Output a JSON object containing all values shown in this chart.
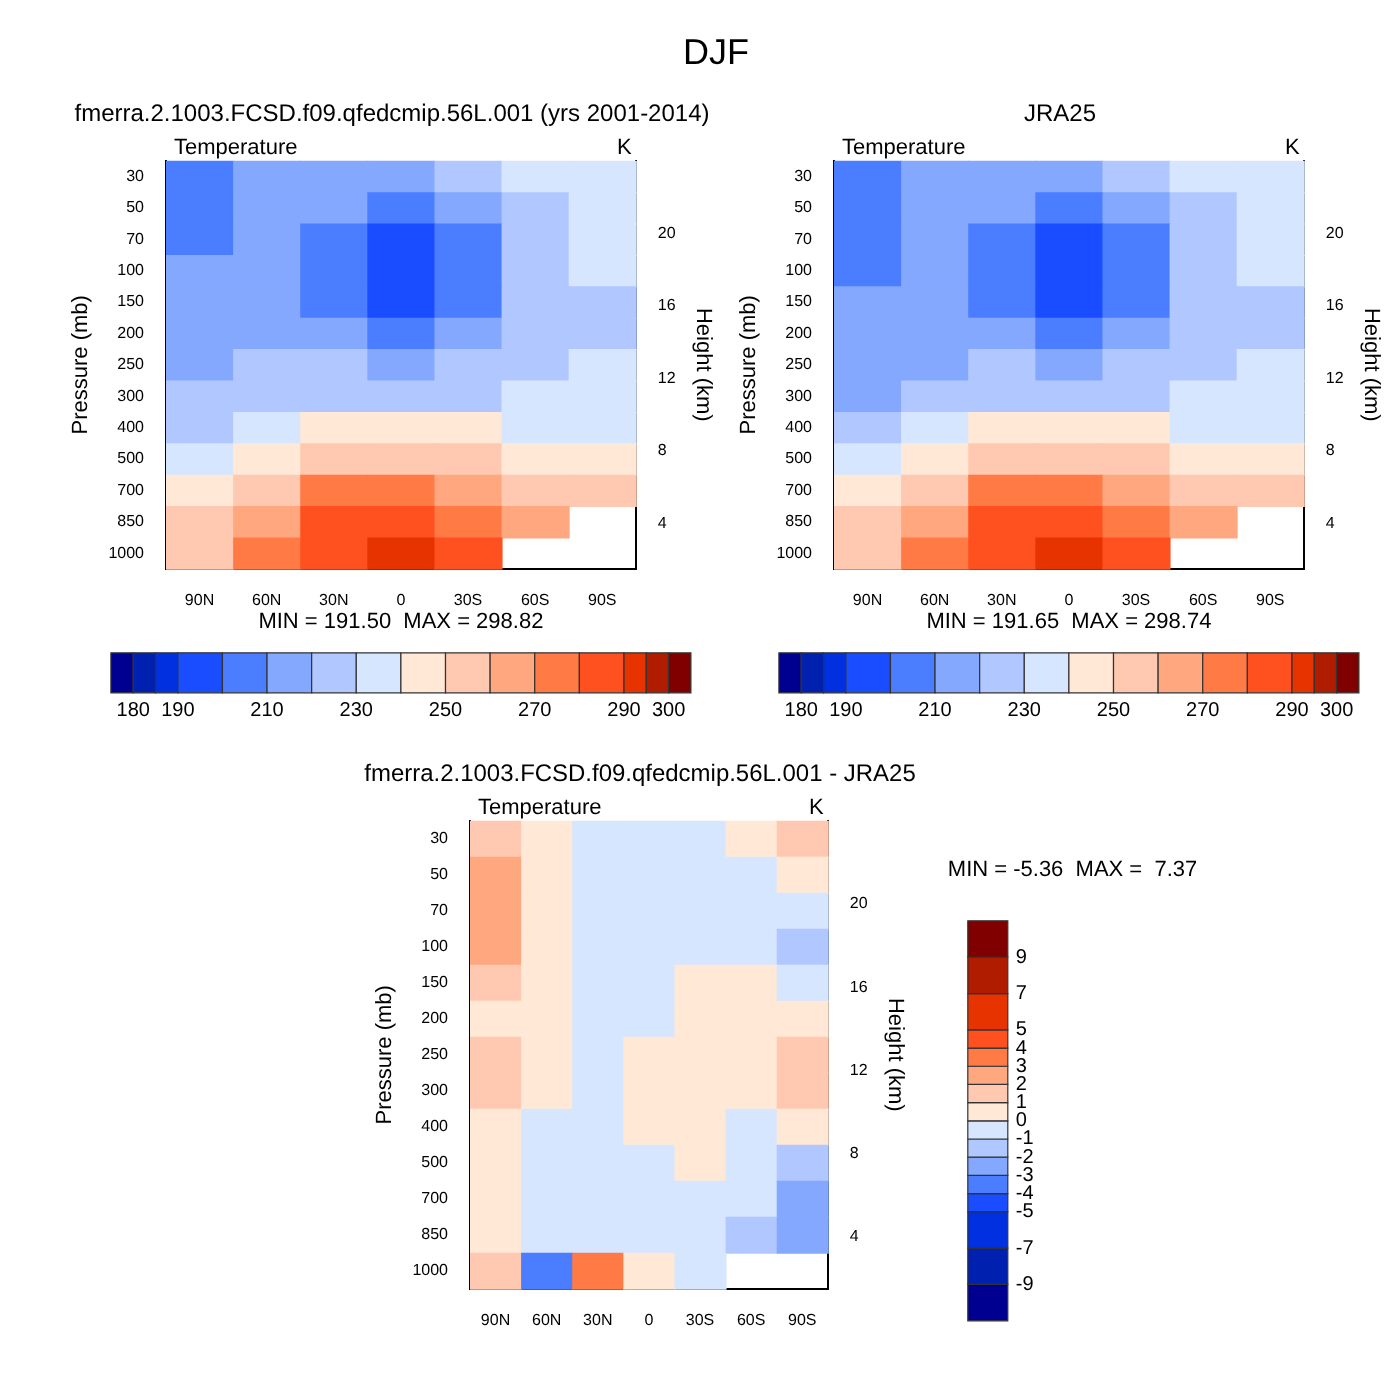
{
  "chart_data": [
    {
      "type": "other",
      "title": "DJF"
    },
    {
      "type": "heatmap",
      "title": "fmerra.2.1003.FCSD.f09.qfedcmip.56L.001 (yrs 2001-2014)",
      "ylabel": "Pressure (mb)",
      "y2label": "Height (km)",
      "annotations": [
        "Temperature",
        "K",
        "MIN = 191.50  MAX = 298.82"
      ],
      "categories": [
        "90N",
        "60N",
        "30N",
        "0",
        "30S",
        "60S",
        "90S"
      ],
      "y_categories": [
        "30",
        "50",
        "70",
        "100",
        "150",
        "200",
        "250",
        "300",
        "400",
        "500",
        "700",
        "850",
        "1000"
      ],
      "cells": [
        [
          205,
          212,
          215,
          213,
          222,
          232,
          235
        ],
        [
          205,
          213,
          212,
          205,
          218,
          228,
          232
        ],
        [
          208,
          213,
          205,
          197,
          208,
          225,
          232
        ],
        [
          210,
          214,
          200,
          195,
          200,
          222,
          232
        ],
        [
          213,
          215,
          205,
          198,
          205,
          222,
          228
        ],
        [
          215,
          217,
          213,
          205,
          213,
          225,
          228
        ],
        [
          217,
          220,
          222,
          215,
          222,
          228,
          232
        ],
        [
          220,
          223,
          228,
          228,
          228,
          232,
          235
        ],
        [
          225,
          232,
          245,
          247,
          243,
          237,
          238
        ],
        [
          233,
          243,
          255,
          258,
          253,
          245,
          242
        ],
        [
          248,
          258,
          270,
          275,
          268,
          258,
          250
        ],
        [
          253,
          265,
          280,
          285,
          278,
          268,
          null
        ],
        [
          255,
          270,
          288,
          292,
          285,
          null,
          null
        ]
      ],
      "cticks": [
        180,
        {
          "value": 185,
          "label": null
        },
        190,
        {
          "value": 200,
          "label": null
        },
        210,
        {
          "value": 220,
          "label": null
        },
        230,
        {
          "value": 240,
          "label": null
        },
        250,
        {
          "value": 260,
          "label": null
        },
        270,
        {
          "value": 280,
          "label": null
        },
        290,
        {
          "value": 295,
          "label": null
        },
        300
      ],
      "colors": [
        "#000090",
        "#0020b0",
        "#0030e0",
        "#1a4dff",
        "#4a7dff",
        "#85a8ff",
        "#b0c8ff",
        "#d6e6ff",
        "#ffe8d6",
        "#ffc8b0",
        "#ffa880",
        "#ff7a45",
        "#ff5020",
        "#e63300",
        "#b01c00",
        "#800000"
      ],
      "clim": [
        175,
        305
      ],
      "y2lim": [
        1.5,
        24
      ],
      "y2ticks": [
        4,
        8,
        12,
        16,
        20
      ]
    },
    {
      "type": "heatmap",
      "title": "JRA25",
      "ylabel": "Pressure (mb)",
      "y2label": "Height (km)",
      "annotations": [
        "Temperature",
        "K",
        "MIN = 191.65  MAX = 298.74"
      ],
      "categories": [
        "90N",
        "60N",
        "30N",
        "0",
        "30S",
        "60S",
        "90S"
      ],
      "y_categories": [
        "30",
        "50",
        "70",
        "100",
        "150",
        "200",
        "250",
        "300",
        "400",
        "500",
        "700",
        "850",
        "1000"
      ],
      "cells": [
        [
          203.5,
          211.5,
          215.5,
          213.5,
          222.5,
          231.5,
          233.5
        ],
        [
          202.5,
          212.5,
          212.5,
          205.5,
          218.5,
          228.5,
          231.5
        ],
        [
          205.5,
          212.5,
          205.5,
          197.5,
          208.5,
          225.5,
          232.5
        ],
        [
          207.5,
          213.5,
          200.5,
          195.5,
          200.5,
          222.5,
          233.5
        ],
        [
          211.5,
          214.5,
          205.5,
          198.5,
          204.5,
          221.5,
          228.5
        ],
        [
          214.5,
          216.5,
          213.5,
          205.5,
          212.5,
          224.5,
          227.5
        ],
        [
          215.5,
          219.5,
          222.5,
          214.5,
          221.5,
          227.5,
          230.5
        ],
        [
          218.5,
          222.5,
          228.5,
          227.5,
          227.5,
          231.5,
          233.5
        ],
        [
          224.5,
          232.5,
          245.5,
          246.5,
          242.5,
          237.5,
          237.5
        ],
        [
          232.5,
          243.5,
          255.5,
          258.5,
          252.5,
          245.5,
          243.5
        ],
        [
          247.5,
          258.5,
          270.5,
          275.5,
          268.5,
          258.5,
          252.5
        ],
        [
          252.5,
          265.5,
          280.5,
          285.5,
          278.5,
          268.5,
          null
        ],
        [
          253.5,
          273.5,
          284.5,
          291.5,
          285.5,
          null,
          null
        ]
      ],
      "cticks": [
        180,
        {
          "value": 185,
          "label": null
        },
        190,
        {
          "value": 200,
          "label": null
        },
        210,
        {
          "value": 220,
          "label": null
        },
        230,
        {
          "value": 240,
          "label": null
        },
        250,
        {
          "value": 260,
          "label": null
        },
        270,
        {
          "value": 280,
          "label": null
        },
        290,
        {
          "value": 295,
          "label": null
        },
        300
      ],
      "colors": [
        "#000090",
        "#0020b0",
        "#0030e0",
        "#1a4dff",
        "#4a7dff",
        "#85a8ff",
        "#b0c8ff",
        "#d6e6ff",
        "#ffe8d6",
        "#ffc8b0",
        "#ffa880",
        "#ff7a45",
        "#ff5020",
        "#e63300",
        "#b01c00",
        "#800000"
      ],
      "clim": [
        175,
        305
      ],
      "y2lim": [
        1.5,
        24
      ],
      "y2ticks": [
        4,
        8,
        12,
        16,
        20
      ]
    },
    {
      "type": "heatmap",
      "title": "fmerra.2.1003.FCSD.f09.qfedcmip.56L.001 - JRA25",
      "ylabel": "Pressure (mb)",
      "y2label": "Height (km)",
      "annotations": [
        "Temperature",
        "K",
        "MIN = -5.36  MAX =  7.37"
      ],
      "categories": [
        "90N",
        "60N",
        "30N",
        "0",
        "30S",
        "60S",
        "90S"
      ],
      "y_categories": [
        "30",
        "50",
        "70",
        "100",
        "150",
        "200",
        "250",
        "300",
        "400",
        "500",
        "700",
        "850",
        "1000"
      ],
      "cells": [
        [
          1.5,
          0.5,
          -0.5,
          -0.5,
          -0.5,
          0.5,
          1.5
        ],
        [
          2.5,
          0.5,
          -0.5,
          -0.5,
          -0.5,
          -0.5,
          0.5
        ],
        [
          2.5,
          0.5,
          -0.5,
          -0.5,
          -0.5,
          -0.5,
          -0.5
        ],
        [
          2.5,
          0.5,
          -0.5,
          -0.5,
          -0.5,
          -0.5,
          -1.5
        ],
        [
          1.5,
          0.5,
          -0.5,
          -0.5,
          0.5,
          0.5,
          -0.5
        ],
        [
          0.5,
          0.5,
          -0.5,
          -0.5,
          0.5,
          0.5,
          0.5
        ],
        [
          1.5,
          0.5,
          -0.5,
          0.5,
          0.5,
          0.5,
          1.5
        ],
        [
          1.5,
          0.5,
          -0.5,
          0.5,
          0.5,
          0.5,
          1.5
        ],
        [
          0.5,
          -0.5,
          -0.5,
          0.5,
          0.5,
          -0.5,
          0.5
        ],
        [
          0.5,
          -0.5,
          -0.5,
          -0.5,
          0.5,
          -0.5,
          -1.5
        ],
        [
          0.5,
          -0.5,
          -0.5,
          -0.5,
          -0.5,
          -0.5,
          -2.5
        ],
        [
          0.5,
          -0.5,
          -0.5,
          -0.5,
          -0.5,
          -1.5,
          -2.5
        ],
        [
          1.5,
          -3.5,
          3.5,
          0.5,
          -0.5,
          null,
          null
        ]
      ],
      "cticks": [
        -9,
        -7,
        -5,
        -4,
        -3,
        -2,
        -1,
        0,
        1,
        2,
        3,
        4,
        5,
        7,
        9
      ],
      "clim": [
        -11,
        11
      ],
      "colors": [
        "#000090",
        "#0020b0",
        "#0030e0",
        "#1a4dff",
        "#4a7dff",
        "#85a8ff",
        "#b0c8ff",
        "#d6e6ff",
        "#ffe8d6",
        "#ffc8b0",
        "#ffa880",
        "#ff7a45",
        "#ff5020",
        "#e63300",
        "#b01c00",
        "#800000"
      ],
      "y2lim": [
        1.5,
        24
      ],
      "y2ticks": [
        4,
        8,
        12,
        16,
        20
      ]
    }
  ]
}
